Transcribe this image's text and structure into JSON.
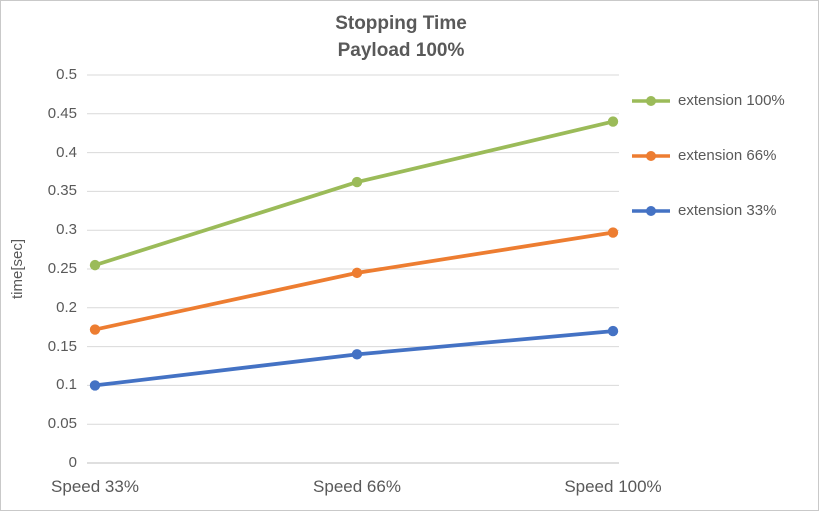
{
  "chart_data": {
    "type": "line",
    "title": "Stopping Time Payload 100%",
    "title_lines": [
      "Stopping Time",
      "Payload 100%"
    ],
    "xlabel": "",
    "ylabel": "time[sec]",
    "categories": [
      "Speed 33%",
      "Speed 66%",
      "Speed 100%"
    ],
    "series": [
      {
        "name": "extension 100%",
        "color": "#9BBB59",
        "values": [
          0.255,
          0.362,
          0.44
        ]
      },
      {
        "name": "extension 66%",
        "color": "#ED7D31",
        "values": [
          0.172,
          0.245,
          0.297
        ]
      },
      {
        "name": "extension 33%",
        "color": "#4472C4",
        "values": [
          0.1,
          0.14,
          0.17
        ]
      }
    ],
    "ylim": [
      0,
      0.5
    ],
    "ytick_step": 0.05,
    "yticks": [
      0,
      0.05,
      0.1,
      0.15,
      0.2,
      0.25,
      0.3,
      0.35,
      0.4,
      0.45,
      0.5
    ],
    "grid": "horizontal",
    "legend_position": "right",
    "gridline_color": "#D9D9D9",
    "axis_color": "#BFBFBF",
    "text_color": "#595959",
    "background_color": "#FFFFFF"
  }
}
